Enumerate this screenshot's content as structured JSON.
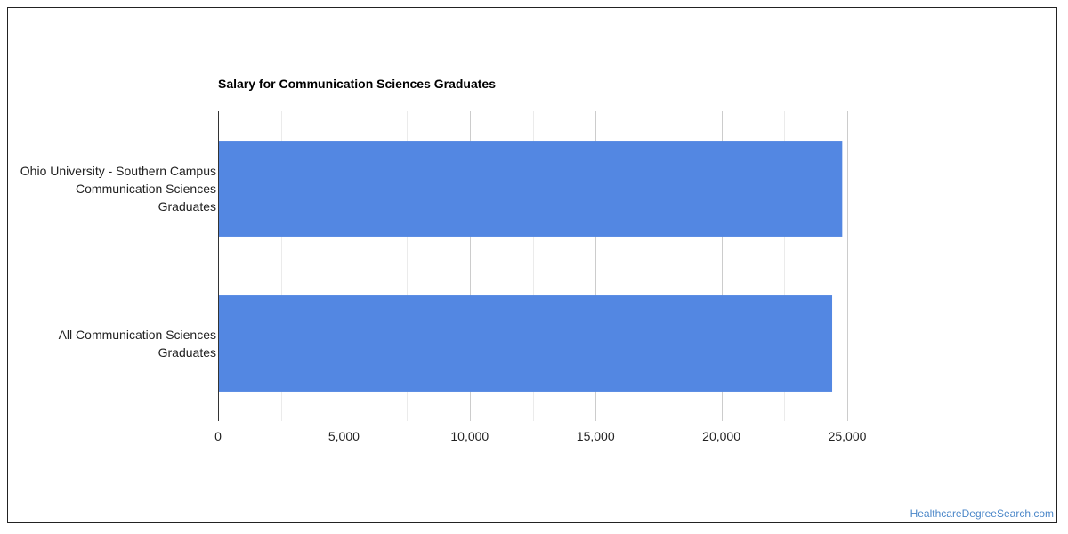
{
  "chart_data": {
    "type": "bar",
    "orientation": "horizontal",
    "title": "Salary for Communication Sciences Graduates",
    "categories": [
      "Ohio University - Southern Campus Communication Sciences Graduates",
      "All Communication Sciences Graduates"
    ],
    "category_lines": [
      [
        "Ohio University - Southern Campus",
        "Communication Sciences",
        "Graduates"
      ],
      [
        "All Communication Sciences",
        "Graduates"
      ]
    ],
    "values": [
      24800,
      24400
    ],
    "xlim": [
      0,
      25000
    ],
    "xticks": [
      0,
      5000,
      10000,
      15000,
      20000,
      25000
    ],
    "xtick_labels": [
      "0",
      "5,000",
      "10,000",
      "15,000",
      "20,000",
      "25,000"
    ],
    "grid": true,
    "bar_color": "#5387e2",
    "xlabel": "",
    "ylabel": ""
  },
  "footer": {
    "source": "HealthcareDegreeSearch.com"
  }
}
